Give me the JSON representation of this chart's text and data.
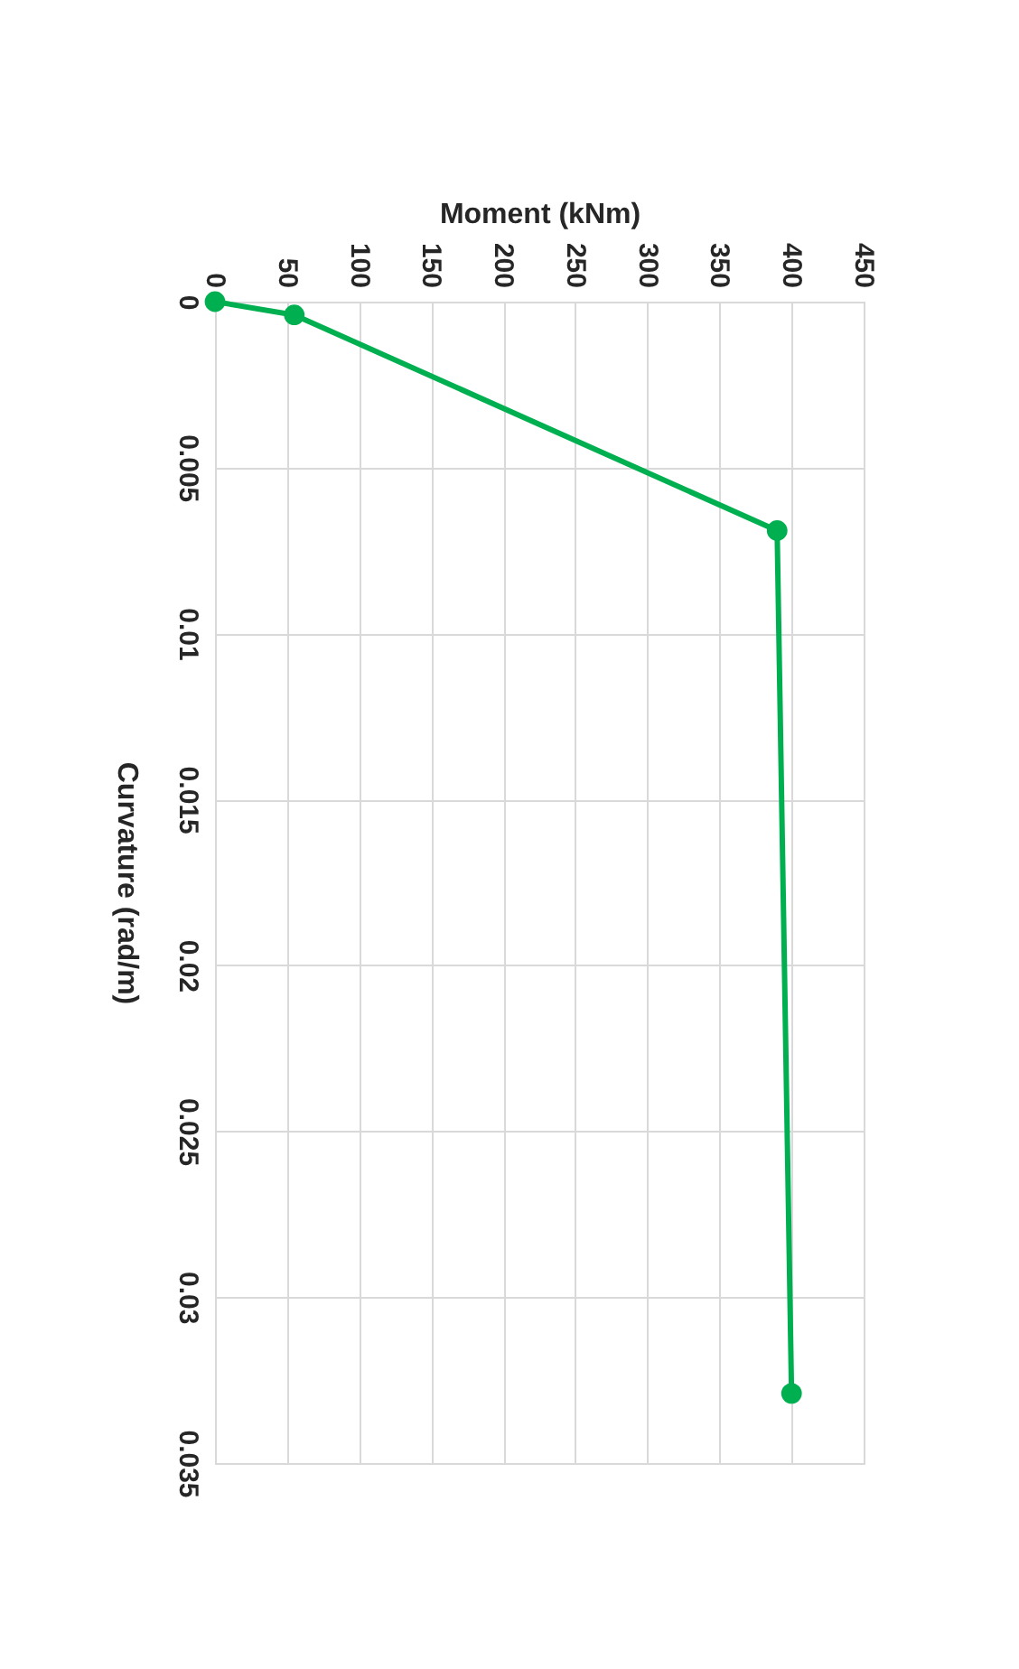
{
  "chart_data": {
    "type": "line",
    "xlabel": "Moment (kNm)",
    "ylabel": "Curvature (rad/m)",
    "x": [
      0,
      55,
      390,
      400
    ],
    "series": [
      {
        "color": "#00b050",
        "values": [
          0,
          0.0004,
          0.0069,
          0.0329
        ]
      }
    ],
    "xlim": [
      0,
      450
    ],
    "xticks": [
      0,
      50,
      100,
      150,
      200,
      250,
      300,
      350,
      400,
      450
    ],
    "ylim": [
      0.035,
      0
    ],
    "yticks": [
      0,
      0.005,
      0.01,
      0.015,
      0.02,
      0.025,
      0.03,
      0.035
    ],
    "grid": true,
    "marker": "circle",
    "line_style": "solid",
    "legend": false
  }
}
